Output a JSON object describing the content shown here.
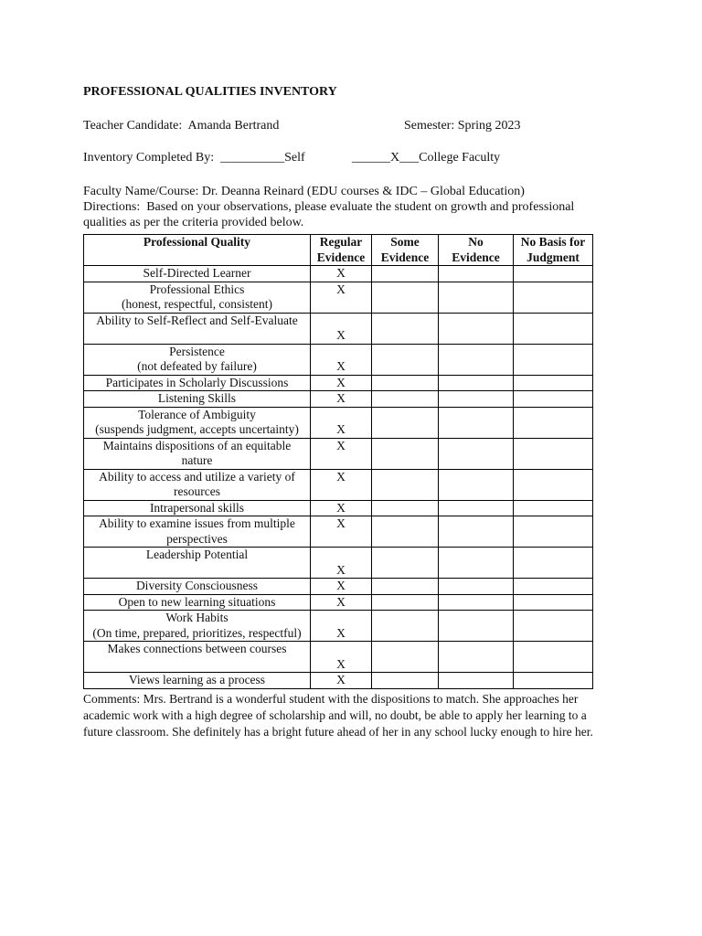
{
  "title": "PROFESSIONAL QUALITIES INVENTORY",
  "candidate_line": "Teacher Candidate:  Amanda Bertrand",
  "semester_line": "Semester: Spring 2023",
  "completed_by": {
    "label": "Inventory Completed By:",
    "self_blank": "__________",
    "self_label": "Self",
    "faculty_blank": "______X___",
    "faculty_label": "College Faculty"
  },
  "faculty_line": "Faculty Name/Course: Dr. Deanna Reinard (EDU courses & IDC – Global Education)",
  "directions_line1": "Directions:  Based on your observations, please evaluate the student on growth and professional",
  "directions_line2": "qualities as per the criteria provided below.",
  "table": {
    "headers": [
      [
        "Professional Quality",
        ""
      ],
      [
        "Regular",
        "Evidence"
      ],
      [
        "Some",
        "Evidence"
      ],
      [
        "No",
        "Evidence"
      ],
      [
        "No Basis for",
        "Judgment"
      ]
    ],
    "rows": [
      {
        "lines": [
          "Self-Directed Learner"
        ],
        "marks": [
          "X",
          "",
          "",
          ""
        ]
      },
      {
        "lines": [
          "Professional Ethics",
          "(honest, respectful, consistent)"
        ],
        "marks": [
          "X",
          "",
          "",
          ""
        ]
      },
      {
        "lines": [
          "Ability to Self-Reflect and Self-Evaluate",
          ""
        ],
        "marks": [
          "X",
          "",
          "",
          ""
        ],
        "bottom": true
      },
      {
        "lines": [
          "Persistence",
          "(not defeated by failure)"
        ],
        "marks": [
          "X",
          "",
          "",
          ""
        ],
        "bottom": true
      },
      {
        "lines": [
          "Participates in Scholarly Discussions"
        ],
        "marks": [
          "X",
          "",
          "",
          ""
        ]
      },
      {
        "lines": [
          "Listening Skills"
        ],
        "marks": [
          "X",
          "",
          "",
          ""
        ]
      },
      {
        "lines": [
          "Tolerance of Ambiguity",
          "(suspends judgment, accepts uncertainty)"
        ],
        "marks": [
          "X",
          "",
          "",
          ""
        ],
        "bottom": true
      },
      {
        "lines": [
          "Maintains dispositions of an equitable",
          "nature"
        ],
        "marks": [
          "X",
          "",
          "",
          ""
        ]
      },
      {
        "lines": [
          "Ability to access and utilize a variety of",
          "resources"
        ],
        "marks": [
          "X",
          "",
          "",
          ""
        ]
      },
      {
        "lines": [
          "Intrapersonal skills"
        ],
        "marks": [
          "X",
          "",
          "",
          ""
        ]
      },
      {
        "lines": [
          "Ability to examine issues from multiple",
          "perspectives"
        ],
        "marks": [
          "X",
          "",
          "",
          ""
        ]
      },
      {
        "lines": [
          "Leadership Potential",
          ""
        ],
        "marks": [
          "X",
          "",
          "",
          ""
        ],
        "bottom": true
      },
      {
        "lines": [
          "Diversity Consciousness"
        ],
        "marks": [
          "X",
          "",
          "",
          ""
        ]
      },
      {
        "lines": [
          "Open to new learning situations"
        ],
        "marks": [
          "X",
          "",
          "",
          ""
        ]
      },
      {
        "lines": [
          "Work Habits",
          "(On time, prepared, prioritizes, respectful)"
        ],
        "marks": [
          "X",
          "",
          "",
          ""
        ],
        "bottom": true
      },
      {
        "lines": [
          "Makes connections between courses",
          ""
        ],
        "marks": [
          "X",
          "",
          "",
          ""
        ],
        "bottom": true
      },
      {
        "lines": [
          "Views learning as a process"
        ],
        "marks": [
          "X",
          "",
          "",
          ""
        ]
      }
    ]
  },
  "comments": "Comments: Mrs. Bertrand is a wonderful student with the dispositions to match.  She approaches her academic work with a high degree of scholarship and will, no doubt, be able to apply her learning to a future classroom.  She definitely has a bright future ahead of her in any school lucky enough to hire her."
}
